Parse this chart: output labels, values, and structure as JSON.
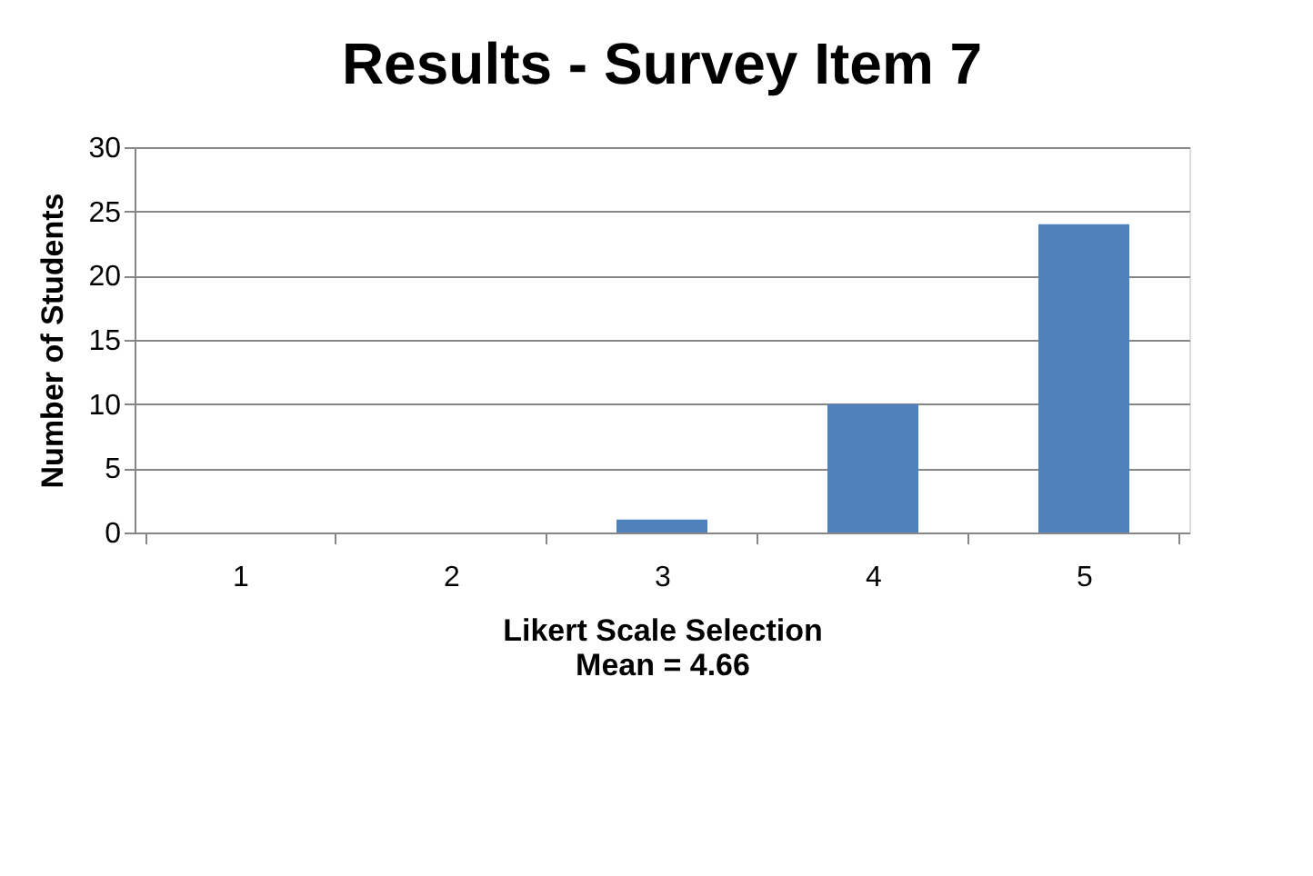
{
  "chart_data": {
    "type": "bar",
    "title": "Results - Survey Item 7",
    "xlabel": "Likert Scale Selection",
    "ylabel": "Number of Students",
    "annotations": [
      "Mean = 4.66"
    ],
    "categories": [
      "1",
      "2",
      "3",
      "4",
      "5"
    ],
    "values": [
      0,
      0,
      1,
      10,
      24
    ],
    "color": "#4f81bd",
    "ylim": [
      0,
      30
    ],
    "yticks": [
      0,
      5,
      10,
      15,
      20,
      25,
      30
    ],
    "grid": "y"
  }
}
